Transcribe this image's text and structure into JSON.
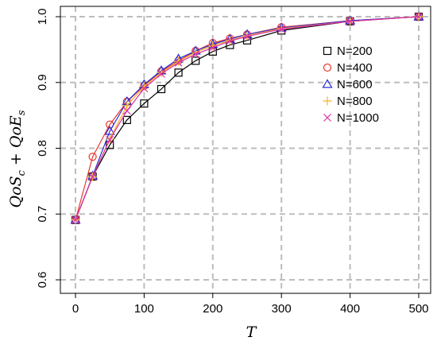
{
  "chart_data": {
    "type": "line",
    "xlabel": "T",
    "ylabel": "QoS_c + QoE_s",
    "xlim": [
      0,
      500
    ],
    "ylim": [
      0.6,
      1.0
    ],
    "xticks": [
      0,
      100,
      200,
      300,
      400,
      500
    ],
    "yticks": [
      0.6,
      0.7,
      0.8,
      0.9,
      1.0
    ],
    "xtick_labels": [
      "0",
      "100",
      "200",
      "300",
      "400",
      "500"
    ],
    "ytick_labels": [
      "0.6",
      "0.7",
      "0.8",
      "0.9",
      "1.0"
    ],
    "grid": true,
    "grid_style": "dashed-gray",
    "legend_position": "right",
    "x": [
      0,
      25,
      50,
      75,
      100,
      125,
      150,
      175,
      200,
      225,
      250,
      300,
      400,
      500
    ],
    "series": [
      {
        "name": "N=200",
        "color": "#000000",
        "marker": "square",
        "values": [
          0.691,
          0.757,
          0.805,
          0.843,
          0.868,
          0.89,
          0.915,
          0.933,
          0.947,
          0.957,
          0.964,
          0.979,
          0.993,
          1.0
        ]
      },
      {
        "name": "N=400",
        "color": "#e8372d",
        "marker": "circle",
        "values": [
          0.691,
          0.787,
          0.836,
          0.871,
          0.895,
          0.917,
          0.933,
          0.948,
          0.96,
          0.967,
          0.973,
          0.984,
          0.994,
          1.0
        ]
      },
      {
        "name": "N=600",
        "color": "#2b2bd6",
        "marker": "triangle",
        "values": [
          0.691,
          0.758,
          0.826,
          0.871,
          0.897,
          0.918,
          0.936,
          0.948,
          0.958,
          0.966,
          0.973,
          0.983,
          0.994,
          1.0
        ]
      },
      {
        "name": "N=800",
        "color": "#f5b226",
        "marker": "plus",
        "values": [
          0.691,
          0.757,
          0.814,
          0.865,
          0.894,
          0.915,
          0.932,
          0.946,
          0.956,
          0.964,
          0.971,
          0.982,
          0.993,
          1.0
        ]
      },
      {
        "name": "N=1000",
        "color": "#dd2fa6",
        "marker": "cross",
        "values": [
          0.691,
          0.757,
          0.813,
          0.857,
          0.891,
          0.913,
          0.93,
          0.943,
          0.953,
          0.963,
          0.97,
          0.981,
          0.993,
          1.0
        ]
      }
    ]
  }
}
